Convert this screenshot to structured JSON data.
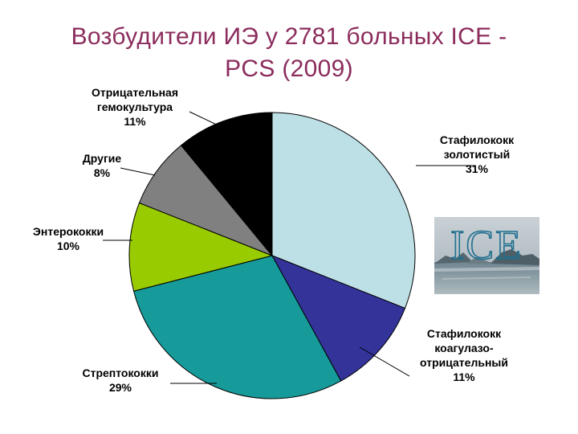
{
  "slide": {
    "title_line1": "Возбудители ИЭ у 2781 больных ICE -",
    "title_line2": "PCS (2009)"
  },
  "logo": {
    "text": "ICE"
  },
  "chart_data": {
    "type": "pie",
    "title": "Возбудители ИЭ у 2781 больных ICE - PCS (2009)",
    "slices": [
      {
        "label_lines": [
          "Стафилококк",
          "золотистый",
          "31%"
        ],
        "value": 31,
        "color": "#bde0e6"
      },
      {
        "label_lines": [
          "Стафилококк",
          "коагулазо-",
          "отрицательный",
          "11%"
        ],
        "value": 11,
        "color": "#33339a"
      },
      {
        "label_lines": [
          "Стрептококки",
          "29%"
        ],
        "value": 29,
        "color": "#179a9a"
      },
      {
        "label_lines": [
          "Энтерококки",
          "10%"
        ],
        "value": 10,
        "color": "#99cc00"
      },
      {
        "label_lines": [
          "Другие",
          "8%"
        ],
        "value": 8,
        "color": "#808080"
      },
      {
        "label_lines": [
          "Отрицательная",
          "гемокультура",
          "11%"
        ],
        "value": 11,
        "color": "#000000"
      }
    ]
  }
}
